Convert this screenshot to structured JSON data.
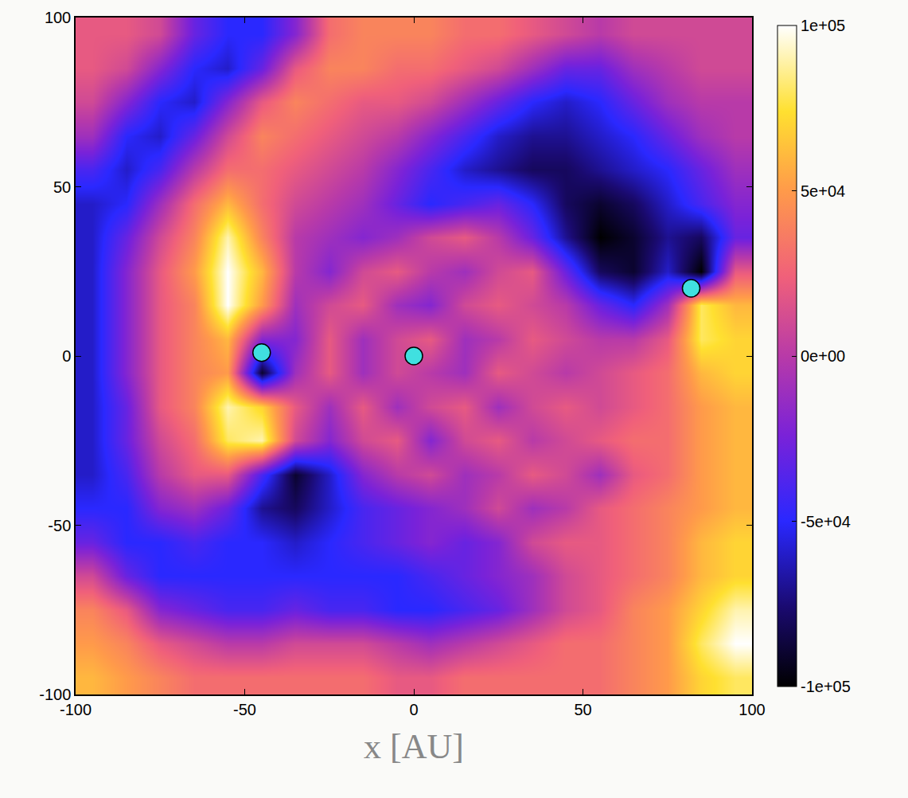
{
  "chart_data": {
    "type": "heatmap",
    "x_label": "x [AU]",
    "xlim": [
      -100,
      100
    ],
    "ylim": [
      -100,
      100
    ],
    "xticks": [
      -100,
      -50,
      0,
      50,
      100
    ],
    "yticks": [
      -100,
      -50,
      0,
      50,
      100
    ],
    "x": [
      -95,
      -85,
      -75,
      -65,
      -55,
      -45,
      -35,
      -25,
      -15,
      -5,
      5,
      15,
      25,
      35,
      45,
      55,
      65,
      75,
      85,
      95
    ],
    "y": [
      95,
      85,
      75,
      65,
      55,
      45,
      35,
      25,
      15,
      5,
      -5,
      -15,
      -25,
      -35,
      -45,
      -55,
      -65,
      -75,
      -85,
      -95
    ],
    "cells": [
      [
        20000,
        20000,
        10000,
        -30000,
        -50000,
        -50000,
        -20000,
        30000,
        40000,
        40000,
        40000,
        30000,
        30000,
        20000,
        10000,
        0,
        10000,
        10000,
        10000,
        10000
      ],
      [
        20000,
        10000,
        -20000,
        -50000,
        -60000,
        -30000,
        20000,
        40000,
        40000,
        30000,
        30000,
        20000,
        10000,
        -10000,
        -30000,
        -30000,
        -10000,
        0,
        10000,
        10000
      ],
      [
        10000,
        -20000,
        -50000,
        -60000,
        -20000,
        20000,
        40000,
        30000,
        20000,
        20000,
        10000,
        -10000,
        -30000,
        -50000,
        -60000,
        -50000,
        -30000,
        -10000,
        0,
        0
      ],
      [
        -10000,
        -50000,
        -60000,
        -30000,
        10000,
        40000,
        30000,
        20000,
        10000,
        0,
        -20000,
        -40000,
        -60000,
        -70000,
        -70000,
        -60000,
        -50000,
        -30000,
        -10000,
        0
      ],
      [
        -40000,
        -60000,
        -40000,
        0,
        30000,
        30000,
        20000,
        10000,
        0,
        -20000,
        -40000,
        -60000,
        -70000,
        -80000,
        -80000,
        -70000,
        -60000,
        -50000,
        -30000,
        -10000
      ],
      [
        -60000,
        -50000,
        -10000,
        30000,
        60000,
        30000,
        10000,
        0,
        -10000,
        -30000,
        -50000,
        -40000,
        -30000,
        -50000,
        -80000,
        -90000,
        -80000,
        -60000,
        -40000,
        -20000
      ],
      [
        -60000,
        -30000,
        10000,
        40000,
        90000,
        40000,
        0,
        -10000,
        -20000,
        -10000,
        10000,
        20000,
        0,
        -30000,
        -70000,
        -100000,
        -90000,
        -70000,
        -80000,
        -30000
      ],
      [
        -60000,
        -20000,
        20000,
        50000,
        100000,
        60000,
        0,
        -20000,
        10000,
        20000,
        0,
        -10000,
        10000,
        20000,
        -30000,
        -80000,
        -90000,
        -60000,
        -100000,
        20000
      ],
      [
        -60000,
        -20000,
        20000,
        40000,
        100000,
        50000,
        -10000,
        10000,
        20000,
        -10000,
        -20000,
        10000,
        20000,
        10000,
        0,
        -30000,
        -50000,
        -10000,
        80000,
        60000
      ],
      [
        -60000,
        -20000,
        20000,
        40000,
        60000,
        -20000,
        -20000,
        20000,
        -10000,
        10000,
        20000,
        -10000,
        0,
        20000,
        10000,
        0,
        0,
        20000,
        80000,
        70000
      ],
      [
        -60000,
        -20000,
        20000,
        40000,
        50000,
        -90000,
        -10000,
        20000,
        -10000,
        10000,
        0,
        -10000,
        20000,
        10000,
        0,
        10000,
        20000,
        30000,
        60000,
        70000
      ],
      [
        -60000,
        -30000,
        20000,
        40000,
        90000,
        70000,
        20000,
        -10000,
        20000,
        -10000,
        10000,
        20000,
        -10000,
        10000,
        20000,
        10000,
        20000,
        30000,
        50000,
        60000
      ],
      [
        -60000,
        -30000,
        10000,
        30000,
        80000,
        90000,
        10000,
        -20000,
        10000,
        20000,
        -20000,
        10000,
        20000,
        0,
        10000,
        20000,
        30000,
        30000,
        50000,
        60000
      ],
      [
        -60000,
        -40000,
        0,
        20000,
        20000,
        -40000,
        -90000,
        -60000,
        -20000,
        0,
        10000,
        -10000,
        0,
        20000,
        10000,
        -10000,
        20000,
        30000,
        50000,
        60000
      ],
      [
        -50000,
        -50000,
        -20000,
        -10000,
        -30000,
        -70000,
        -80000,
        -60000,
        -40000,
        -30000,
        -20000,
        -10000,
        10000,
        -10000,
        0,
        20000,
        30000,
        40000,
        50000,
        60000
      ],
      [
        -30000,
        -50000,
        -50000,
        -40000,
        -50000,
        -50000,
        -60000,
        -50000,
        -40000,
        -30000,
        -20000,
        -30000,
        -20000,
        10000,
        20000,
        20000,
        30000,
        40000,
        60000,
        70000
      ],
      [
        10000,
        -30000,
        -50000,
        -50000,
        -50000,
        -50000,
        -50000,
        -50000,
        -50000,
        -50000,
        -40000,
        -30000,
        -20000,
        -10000,
        10000,
        20000,
        30000,
        40000,
        60000,
        70000
      ],
      [
        40000,
        20000,
        -20000,
        -30000,
        -40000,
        -40000,
        -30000,
        -40000,
        -40000,
        -50000,
        -50000,
        -40000,
        -30000,
        -10000,
        10000,
        20000,
        40000,
        50000,
        70000,
        90000
      ],
      [
        50000,
        40000,
        20000,
        10000,
        0,
        0,
        10000,
        10000,
        10000,
        0,
        -10000,
        0,
        10000,
        20000,
        30000,
        30000,
        40000,
        50000,
        80000,
        100000
      ],
      [
        60000,
        50000,
        40000,
        30000,
        30000,
        30000,
        30000,
        30000,
        30000,
        20000,
        20000,
        30000,
        30000,
        30000,
        30000,
        30000,
        40000,
        50000,
        70000,
        80000
      ]
    ],
    "colorbar_range": [
      -100000,
      100000
    ],
    "colorbar_ticks": [
      {
        "value": 100000,
        "label": "1e+05"
      },
      {
        "value": 50000,
        "label": "5e+04"
      },
      {
        "value": 0,
        "label": "0e+00"
      },
      {
        "value": -50000,
        "label": "-5e+04"
      },
      {
        "value": -100000,
        "label": "-1e+05"
      }
    ],
    "points": {
      "x": [
        -45,
        0,
        82
      ],
      "y": [
        1,
        0,
        20
      ],
      "color": "#40e0e0",
      "marker": "circle"
    }
  }
}
